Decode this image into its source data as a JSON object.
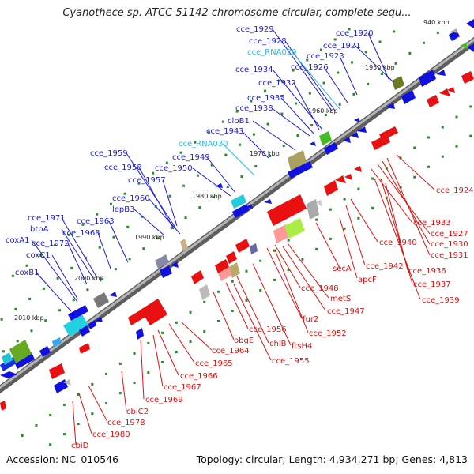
{
  "title": "Cyanothece sp. ATCC 51142 chromosome circular, complete sequ...",
  "footer": {
    "accession": "Accession: NC_010546",
    "summary": "Topology: circular; Length: 4,934,271 bp; Genes: 4,813"
  },
  "colors": {
    "forward_label": "#1a1add",
    "reverse_label": "#e01010",
    "rna_label": "#33b8e8",
    "forward_arrow": "#1010e0",
    "reverse_arrow": "#e81010",
    "backbone": "#8c8c8c",
    "tick": "#2a8a2a"
  },
  "kbp_marks": [
    "940 kbp",
    "1950 kbp",
    "1960 kbp",
    "1970 kbp",
    "1980 kbp",
    "1990 kbp",
    "2000 kbp",
    "2010 kbp"
  ],
  "upper_labels": [
    "cce_1929",
    "cce_1928",
    "cce_RNA029",
    "cce_1920",
    "cce_1921",
    "cce_1923",
    "cce_1926",
    "cce_1934",
    "cce_1932",
    "cce_1935",
    "cce_1938",
    "clpB1",
    "cce_1943",
    "cce_RNA030",
    "cce_1959",
    "cce_1958",
    "cce_1957",
    "cce_1950",
    "cce_1949",
    "cce_1960",
    "lepB3",
    "cce_1971",
    "btpA",
    "cce_1963",
    "coxA1",
    "cce_1972",
    "cce_1968",
    "coxC1",
    "coxB1"
  ],
  "lower_labels": [
    "cce_1924",
    "cce_1933",
    "cce_1927",
    "cce_1930",
    "cce_1931",
    "cce_1940",
    "secA",
    "cce_1942",
    "apcF",
    "cce_1936",
    "cce_1937",
    "cce_1939",
    "cce_1948",
    "metS",
    "cce_1947",
    "fur2",
    "cce_1952",
    "ftsH4",
    "chlB",
    "cce_1956",
    "obgE",
    "cce_1955",
    "cce_1964",
    "cce_1965",
    "cce_1966",
    "cce_1967",
    "cce_1969",
    "cbiC2",
    "cce_1978",
    "cce_1980",
    "cbiD"
  ]
}
